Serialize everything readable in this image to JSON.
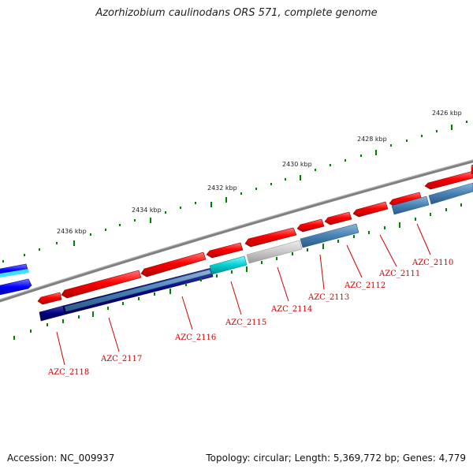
{
  "title": "Azorhizobium caulinodans ORS 571, complete genome",
  "footer": {
    "accession": "Accession: NC_009937",
    "stats": "Topology: circular; Length: 5,369,772 bp; Genes: 4,779"
  },
  "scale": {
    "labels": [
      "2426 kbp",
      "2428 kbp",
      "2430 kbp",
      "2432 kbp",
      "2434 kbp",
      "2436 kbp"
    ]
  },
  "genes": {
    "labels": [
      "AZC_2110",
      "AZC_2111",
      "AZC_2112",
      "AZC_2113",
      "AZC_2114",
      "AZC_2115",
      "AZC_2116",
      "AZC_2117",
      "AZC_2118"
    ]
  },
  "colors": {
    "forward_gene": "#ff0000",
    "reverse_feature": "#4682b4",
    "backbone": "#808080",
    "ticks": "#008000",
    "label": "#d00000",
    "cyan_feature": "#00ced1",
    "gray_feature": "#c8c8c8",
    "navy_feature": "#000080",
    "blue_feature": "#0000ff"
  }
}
